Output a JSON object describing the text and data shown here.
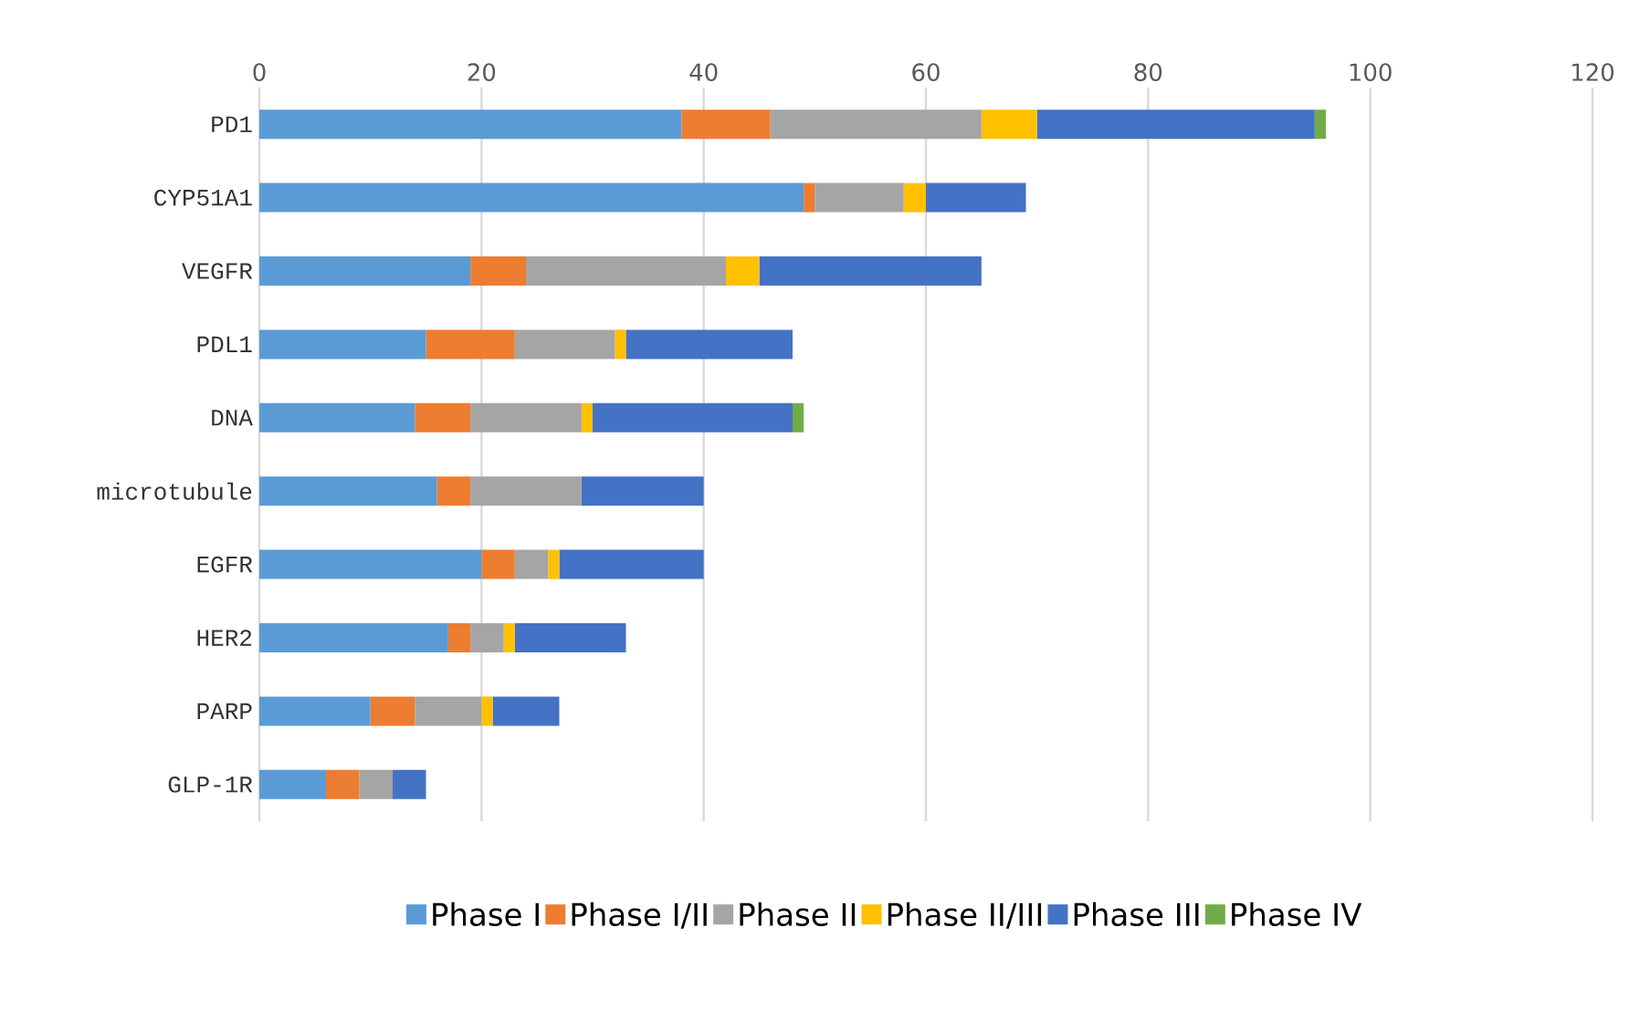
{
  "chart_data": {
    "type": "bar",
    "orientation": "horizontal",
    "stacked": true,
    "categories": [
      "PD1",
      "CYP51A1",
      "VEGFR",
      "PDL1",
      "DNA",
      "microtubule",
      "EGFR",
      "HER2",
      "PARP",
      "GLP-1R"
    ],
    "series": [
      {
        "name": "Phase I",
        "color": "#5b9bd5",
        "values": [
          38,
          49,
          19,
          15,
          14,
          16,
          20,
          17,
          10,
          6
        ]
      },
      {
        "name": "Phase I/II",
        "color": "#ed7d31",
        "values": [
          8,
          1,
          5,
          8,
          5,
          3,
          3,
          2,
          4,
          3
        ]
      },
      {
        "name": "Phase II",
        "color": "#a5a5a5",
        "values": [
          19,
          8,
          18,
          9,
          10,
          10,
          3,
          3,
          6,
          3
        ]
      },
      {
        "name": "Phase II/III",
        "color": "#ffc000",
        "values": [
          5,
          2,
          3,
          1,
          1,
          0,
          1,
          1,
          1,
          0
        ]
      },
      {
        "name": "Phase III",
        "color": "#4472c4",
        "values": [
          25,
          9,
          20,
          15,
          18,
          11,
          13,
          10,
          6,
          3
        ]
      },
      {
        "name": "Phase IV",
        "color": "#70ad47",
        "values": [
          1,
          0,
          0,
          0,
          1,
          0,
          0,
          0,
          0,
          0
        ]
      }
    ],
    "xlim": [
      0,
      120
    ],
    "xticks": [
      0,
      20,
      40,
      60,
      80,
      100,
      120
    ],
    "grid": "x",
    "legend": "bottom"
  }
}
